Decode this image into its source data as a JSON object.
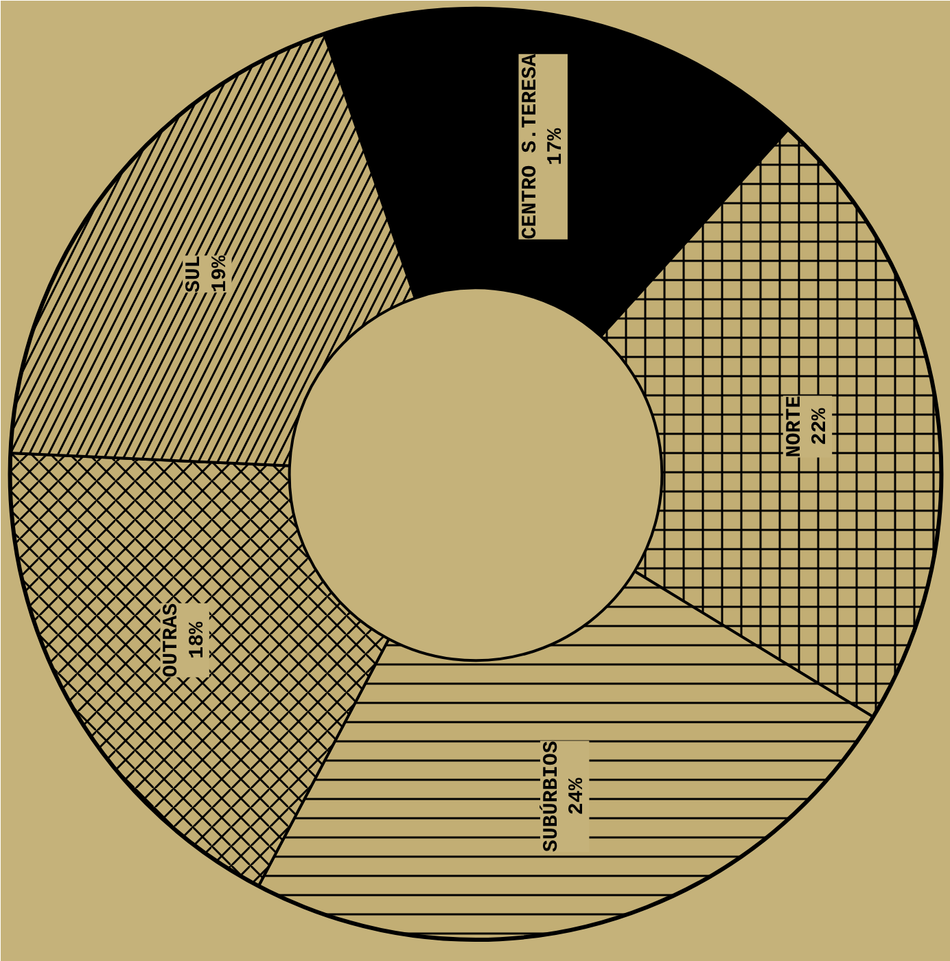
{
  "chart_data": {
    "type": "donut",
    "categories": [
      "CENTRO S.TERESA",
      "NORTE",
      "SUBÚRBIOS",
      "OUTRAS",
      "SUL"
    ],
    "values": [
      17,
      22,
      24,
      18,
      19
    ],
    "value_labels": [
      "17%",
      "22%",
      "24%",
      "18%",
      "19%"
    ],
    "colors": [
      "#000000",
      "#c2ae74",
      "#c2ae74",
      "#c2ae74",
      "#c2ae74"
    ]
  }
}
